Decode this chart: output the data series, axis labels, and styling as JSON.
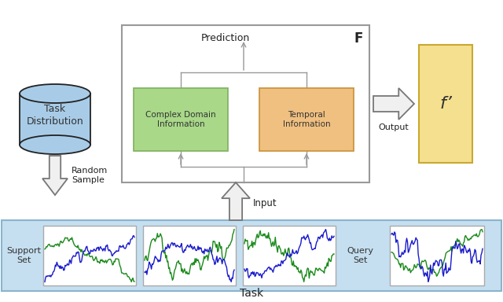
{
  "bg_color": "#ffffff",
  "task_strip_color": "#c5dff0",
  "task_strip_border": "#8ab4cc",
  "prediction_box_color": "#ffffff",
  "prediction_box_border": "#999999",
  "complex_box_color": "#a8d888",
  "complex_box_border": "#80b060",
  "temporal_box_color": "#f0c080",
  "temporal_box_border": "#c8903a",
  "output_box_color": "#f5e090",
  "output_box_border": "#c8a830",
  "cylinder_color": "#a8cce8",
  "cylinder_border": "#222222",
  "arrow_color": "#f0f0f0",
  "arrow_edge": "#777777",
  "line_color": "#999999",
  "title": "Task",
  "f_label": "F",
  "fprime_label": "f’",
  "complex_label": "Complex Domain\nInformation",
  "temporal_label": "Temporal\nInformation",
  "prediction_label": "Prediction",
  "input_label": "Input",
  "output_label": "Output",
  "random_sample_label": "Random\nSample",
  "support_set_label": "Support\nSet",
  "query_set_label": "Query\nSet",
  "task_label": "Task"
}
